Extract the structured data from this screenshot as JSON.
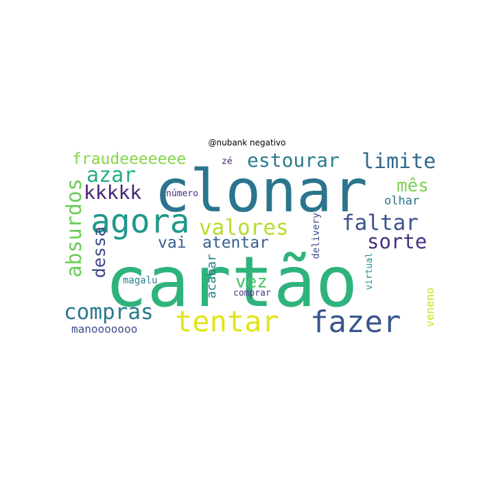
{
  "title": "@nubank negativo",
  "words": [
    {
      "text": "cartão",
      "color": "#2eb37c"
    },
    {
      "text": "clonar",
      "color": "#2b758e"
    },
    {
      "text": "tentar",
      "color": "#e2e418"
    },
    {
      "text": "fazer",
      "color": "#39568c"
    },
    {
      "text": "agora",
      "color": "#1f988b"
    },
    {
      "text": "compras",
      "color": "#2a788e"
    },
    {
      "text": "valores",
      "color": "#b5de2b"
    },
    {
      "text": "faltar",
      "color": "#3b528b"
    },
    {
      "text": "sorte",
      "color": "#46307e"
    },
    {
      "text": "estourar",
      "color": "#2a7b8e"
    },
    {
      "text": "limite",
      "color": "#31688e"
    },
    {
      "text": "azar",
      "color": "#25ab82"
    },
    {
      "text": "kkkkk",
      "color": "#482475"
    },
    {
      "text": "mês",
      "color": "#7ad151"
    },
    {
      "text": "fraudeeeeeee",
      "color": "#86d549"
    },
    {
      "text": "absurdos",
      "color": "#6ccd5a"
    },
    {
      "text": "dessa",
      "color": "#3f4788"
    },
    {
      "text": "vai",
      "color": "#365c8d"
    },
    {
      "text": "atentar",
      "color": "#355f8d"
    },
    {
      "text": "vez",
      "color": "#4ac16d"
    },
    {
      "text": "olhar",
      "color": "#2c728e"
    },
    {
      "text": "acabar",
      "color": "#287d8e"
    },
    {
      "text": "número",
      "color": "#482878"
    },
    {
      "text": "delivery",
      "color": "#3e4a89"
    },
    {
      "text": "virtual",
      "color": "#21918c"
    },
    {
      "text": "magalu",
      "color": "#277f8e"
    },
    {
      "text": "comprar",
      "color": "#443983"
    },
    {
      "text": "manooooooo",
      "color": "#3e4c8a"
    },
    {
      "text": "veneno",
      "color": "#d0e11c"
    },
    {
      "text": "zé",
      "color": "#481f70"
    }
  ]
}
